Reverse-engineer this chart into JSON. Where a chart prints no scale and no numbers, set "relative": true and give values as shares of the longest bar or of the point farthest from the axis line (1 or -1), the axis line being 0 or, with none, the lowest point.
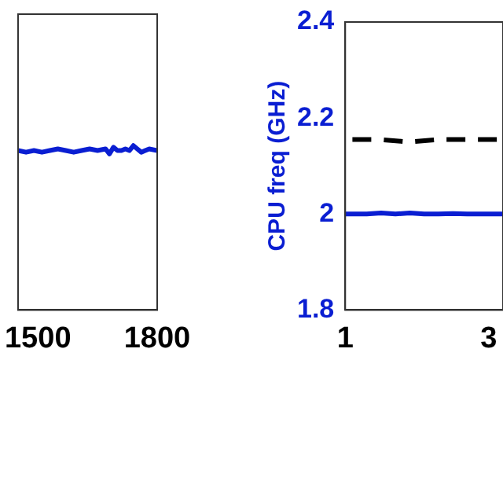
{
  "chart_data": [
    {
      "type": "line",
      "relative": true,
      "tick_labels": "x",
      "xlim": [
        1450,
        1800
      ],
      "xticks": [
        1500,
        1800
      ],
      "color": "#0a1ed2",
      "x": [
        1450,
        1470,
        1490,
        1510,
        1530,
        1550,
        1570,
        1590,
        1610,
        1630,
        1650,
        1670,
        1680,
        1690,
        1700,
        1710,
        1720,
        1730,
        1740,
        1750,
        1760,
        1770,
        1780,
        1800
      ],
      "values": [
        0.97,
        0.96,
        0.97,
        0.96,
        0.97,
        0.98,
        0.97,
        0.96,
        0.97,
        0.98,
        0.97,
        0.98,
        0.95,
        0.99,
        0.97,
        0.97,
        0.98,
        0.97,
        1,
        0.98,
        0.96,
        0.97,
        0.98,
        0.97
      ]
    },
    {
      "type": "line",
      "ylabel": "CPU freq (GHz)",
      "ylim": [
        1.8,
        2.4
      ],
      "yticks": [
        1.8,
        2,
        2.2,
        2.4
      ],
      "xlim": [
        1,
        3.2
      ],
      "xticks": [
        1,
        3
      ],
      "series": [
        {
          "color": "#0a1ed2",
          "line_style": "solid",
          "x": [
            1,
            1.3,
            1.5,
            1.7,
            1.9,
            2.1,
            2.3,
            2.5,
            2.7,
            2.9,
            3.2
          ],
          "values": [
            2,
            2,
            2.002,
            2,
            2.002,
            2,
            2,
            2.001,
            2,
            2,
            2
          ]
        },
        {
          "color": "#000000",
          "line_style": "dashed",
          "x": [
            1.1,
            1.5,
            1.9,
            2.3,
            2.7,
            3.2
          ],
          "values": [
            2.155,
            2.155,
            2.15,
            2.155,
            2.155,
            2.155
          ]
        }
      ]
    }
  ]
}
